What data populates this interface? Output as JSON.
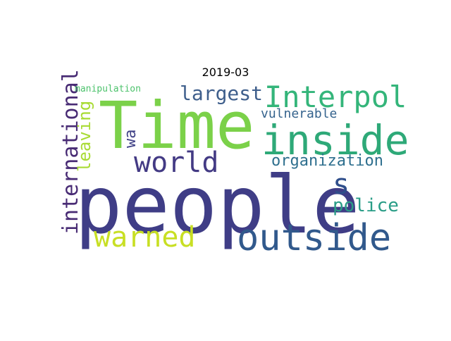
{
  "chart_data": {
    "type": "wordcloud",
    "title": "2019-03",
    "background": "#ffffff",
    "words": [
      {
        "text": "people",
        "color": "#3f3d86"
      },
      {
        "text": "Time",
        "color": "#7bd149"
      },
      {
        "text": "inside",
        "color": "#2ea978"
      },
      {
        "text": "Interpol",
        "color": "#34b57a"
      },
      {
        "text": "outside",
        "color": "#31598c"
      },
      {
        "text": "world",
        "color": "#433a84"
      },
      {
        "text": "warned",
        "color": "#c8df24"
      },
      {
        "text": "largest",
        "color": "#3f5f8c"
      },
      {
        "text": "international",
        "color": "#482b74"
      },
      {
        "text": "organization",
        "color": "#2e6f8e"
      },
      {
        "text": "police",
        "color": "#2a9d87"
      },
      {
        "text": "s",
        "color": "#2f4e8b"
      },
      {
        "text": "leaving",
        "color": "#a8db33"
      },
      {
        "text": "vulnerable",
        "color": "#35638d"
      },
      {
        "text": "wa",
        "color": "#414287"
      },
      {
        "text": "manipulation",
        "color": "#4cc26c"
      }
    ]
  }
}
